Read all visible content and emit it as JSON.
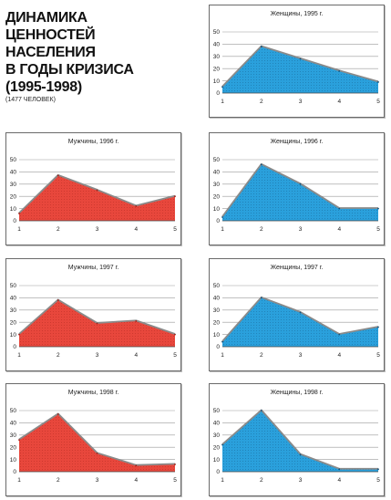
{
  "title": [
    "ДИНАМИКА",
    "ЦЕННОСТЕЙ",
    "НАСЕЛЕНИЯ",
    "В ГОДЫ КРИЗИСА",
    "(1995-1998)"
  ],
  "subtitle": "(1477 ЧЕЛОВЕК)",
  "colors": {
    "men": "#e8473c",
    "women": "#2aa0dc",
    "men_dark": "#9c1f18",
    "women_dark": "#12507a"
  },
  "chart_data": [
    {
      "type": "area",
      "title": "Женщины, 1995 г.",
      "x": [
        1,
        2,
        3,
        4,
        5
      ],
      "values": [
        5,
        38,
        28,
        18,
        9
      ],
      "ylim": [
        0,
        50
      ],
      "yticks": [
        0,
        10,
        20,
        30,
        40,
        50
      ],
      "grid": true,
      "color_key": "women"
    },
    {
      "type": "area",
      "title": "Мужчины, 1996 г.",
      "x": [
        1,
        2,
        3,
        4,
        5
      ],
      "values": [
        6,
        37,
        25,
        12,
        20
      ],
      "ylim": [
        0,
        50
      ],
      "yticks": [
        0,
        10,
        20,
        30,
        40,
        50
      ],
      "grid": true,
      "color_key": "men"
    },
    {
      "type": "area",
      "title": "Женщины, 1996 г.",
      "x": [
        1,
        2,
        3,
        4,
        5
      ],
      "values": [
        3,
        46,
        30,
        10,
        10
      ],
      "ylim": [
        0,
        50
      ],
      "yticks": [
        0,
        10,
        20,
        30,
        40,
        50
      ],
      "grid": true,
      "color_key": "women"
    },
    {
      "type": "area",
      "title": "Мужчины, 1997 г.",
      "x": [
        1,
        2,
        3,
        4,
        5
      ],
      "values": [
        10,
        38,
        19,
        21,
        10
      ],
      "ylim": [
        0,
        50
      ],
      "yticks": [
        0,
        10,
        20,
        30,
        40,
        50
      ],
      "grid": true,
      "color_key": "men"
    },
    {
      "type": "area",
      "title": "Женщины, 1997 г.",
      "x": [
        1,
        2,
        3,
        4,
        5
      ],
      "values": [
        4,
        40,
        28,
        10,
        16
      ],
      "ylim": [
        0,
        50
      ],
      "yticks": [
        0,
        10,
        20,
        30,
        40,
        50
      ],
      "grid": true,
      "color_key": "women"
    },
    {
      "type": "area",
      "title": "Мужчины, 1998 г.",
      "x": [
        1,
        2,
        3,
        4,
        5
      ],
      "values": [
        26,
        47,
        15,
        5,
        6
      ],
      "ylim": [
        0,
        50
      ],
      "yticks": [
        0,
        10,
        20,
        30,
        40,
        50
      ],
      "grid": true,
      "color_key": "men"
    },
    {
      "type": "area",
      "title": "Женщины, 1998 г.",
      "x": [
        1,
        2,
        3,
        4,
        5
      ],
      "values": [
        22,
        50,
        14,
        2,
        2
      ],
      "ylim": [
        0,
        50
      ],
      "yticks": [
        0,
        10,
        20,
        30,
        40,
        50
      ],
      "grid": true,
      "color_key": "women"
    }
  ]
}
